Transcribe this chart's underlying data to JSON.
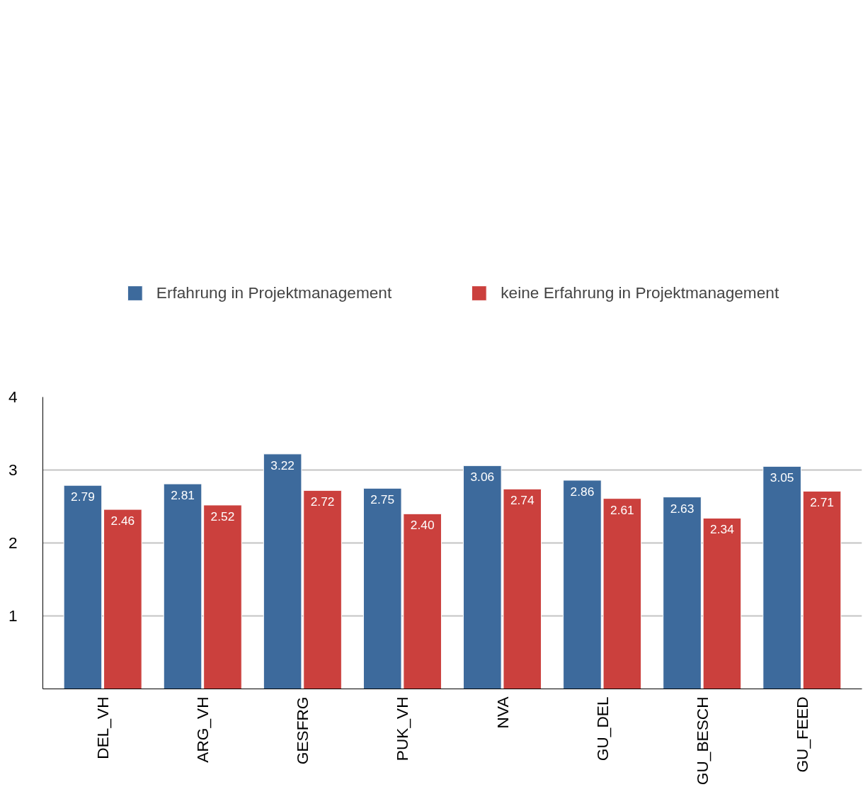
{
  "chart_data": {
    "type": "bar",
    "categories": [
      "DEL_VH",
      "ARG_VH",
      "GESFRG",
      "PUK_VH",
      "NVA",
      "GU_DEL",
      "GU_BESCH",
      "GU_FEED"
    ],
    "series": [
      {
        "name": "Erfahrung in Projektmanagement",
        "color": "#3d6a9c",
        "values": [
          2.79,
          2.81,
          3.22,
          2.75,
          3.06,
          2.86,
          2.63,
          3.05
        ]
      },
      {
        "name": "keine Erfahrung in Projektmanagement",
        "color": "#cb403d",
        "values": [
          2.46,
          2.52,
          2.72,
          2.4,
          2.74,
          2.61,
          2.34,
          2.71
        ]
      }
    ],
    "value_labels": [
      [
        "2.79",
        "2.81",
        "3.22",
        "2.75",
        "3.06",
        "2.86",
        "2.63",
        "3.05"
      ],
      [
        "2.46",
        "2.52",
        "2.72",
        "2.40",
        "2.74",
        "2.61",
        "2.34",
        "2.71"
      ]
    ],
    "ylim": [
      0,
      4
    ],
    "yticks": [
      1,
      2,
      3,
      4
    ],
    "grid": "y",
    "legend": "top"
  }
}
